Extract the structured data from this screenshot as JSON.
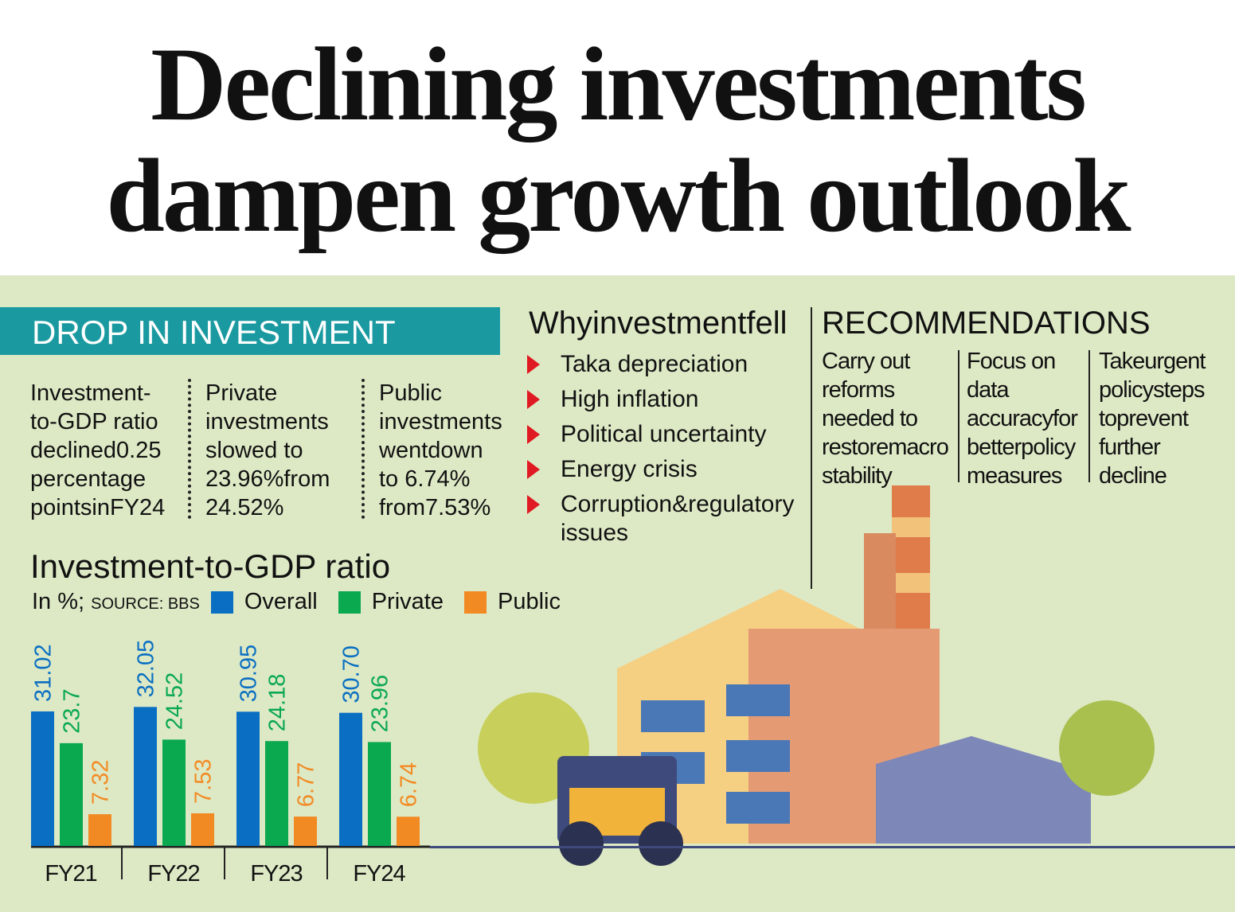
{
  "headline": [
    "Declining investments",
    "dampen growth outlook"
  ],
  "section_title": "DROP IN INVESTMENT",
  "stats": [
    "Investment-\nto-GDP ratio\ndeclined0.25\npercentage\npointsinFY24",
    "Private\ninvestments\nslowed to\n23.96%from\n24.52%",
    "Public\ninvestments\nwentdown\nto 6.74%\nfrom7.53%"
  ],
  "why": {
    "title": "Whyinvestmentfell",
    "items": [
      "Taka depreciation",
      "High inflation",
      "Political uncertainty",
      "Energy crisis",
      "Corruption&regulatory issues"
    ]
  },
  "recommendations": {
    "title": "RECOMMENDATIONS",
    "items": [
      "Carry out reforms needed to restoremacro stability",
      "Focus on data accuracyfor betterpolicy measures",
      "Takeurgent policysteps toprevent further decline"
    ]
  },
  "colors": {
    "overall": "#0a6fc2",
    "private": "#0aa84f",
    "public": "#f28a24",
    "banner": "#1a9aa0",
    "background": "#dde9c5",
    "bullet": "#e01a22"
  },
  "chart_data": {
    "type": "bar",
    "title": "Investment-to-GDP ratio",
    "subtitle": "In %;",
    "source": "SOURCE: BBS",
    "categories": [
      "FY21",
      "FY22",
      "FY23",
      "FY24"
    ],
    "series": [
      {
        "name": "Overall",
        "values": [
          31.02,
          32.05,
          30.95,
          30.7
        ],
        "labels": [
          "31.02",
          "32.05",
          "30.95",
          "30.70"
        ]
      },
      {
        "name": "Private",
        "values": [
          23.7,
          24.52,
          24.18,
          23.96
        ],
        "labels": [
          "23.7",
          "24.52",
          "24.18",
          "23.96"
        ]
      },
      {
        "name": "Public",
        "values": [
          7.32,
          7.53,
          6.77,
          6.74
        ],
        "labels": [
          "7.32",
          "7.53",
          "6.77",
          "6.74"
        ]
      }
    ],
    "ylim": [
      0,
      32.05
    ],
    "grid": false,
    "legend": "top"
  },
  "illustration": "factory-with-forklift"
}
